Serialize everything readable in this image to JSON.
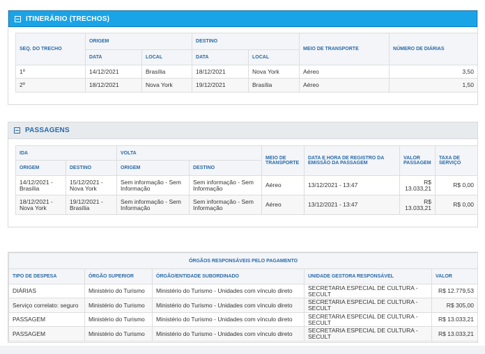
{
  "itinerario": {
    "title": "ITINERÁRIO (TRECHOS)",
    "headers": {
      "seq": "SEQ. DO TRECHO",
      "origem": "ORIGEM",
      "destino": "DESTINO",
      "data": "DATA",
      "local": "LOCAL",
      "meio": "MEIO DE TRANSPORTE",
      "diarias": "NÚMERO DE DIÁRIAS"
    },
    "rows": [
      {
        "seq": "1º",
        "origem_data": "14/12/2021",
        "origem_local": "Brasília",
        "destino_data": "18/12/2021",
        "destino_local": "Nova York",
        "meio": "Aéreo",
        "diarias": "3,50"
      },
      {
        "seq": "2º",
        "origem_data": "18/12/2021",
        "origem_local": "Nova York",
        "destino_data": "19/12/2021",
        "destino_local": "Brasília",
        "meio": "Aéreo",
        "diarias": "1,50"
      }
    ]
  },
  "passagens": {
    "title": "PASSAGENS",
    "headers": {
      "ida": "IDA",
      "volta": "VOLTA",
      "origem": "ORIGEM",
      "destino": "DESTINO",
      "meio": "MEIO DE TRANSPORTE",
      "data_hora": "DATA E HORA DE REGISTRO DA EMISSÃO DA PASSAGEM",
      "valor": "VALOR PASSAGEM",
      "taxa": "TAXA DE SERVIÇO"
    },
    "rows": [
      {
        "ida_origem": "14/12/2021 - Brasília",
        "ida_destino": "15/12/2021 - Nova York",
        "volta_origem": "Sem informação - Sem Informação",
        "volta_destino": "Sem informação - Sem Informação",
        "meio": "Aéreo",
        "data_hora": "13/12/2021 - 13:47",
        "valor": "R$ 13.033,21",
        "taxa": "R$ 0,00"
      },
      {
        "ida_origem": "18/12/2021 - Nova York",
        "ida_destino": "19/12/2021 - Brasília",
        "volta_origem": "Sem informação - Sem Informação",
        "volta_destino": "Sem informação - Sem Informação",
        "meio": "Aéreo",
        "data_hora": "13/12/2021 - 13:47",
        "valor": "R$ 13.033,21",
        "taxa": "R$ 0,00"
      }
    ]
  },
  "orgaos": {
    "title": "ÓRGÃOS RESPONSÁVEIS PELO PAGAMENTO",
    "headers": {
      "tipo": "TIPO DE DESPESA",
      "superior": "ÓRGÃO SUPERIOR",
      "subordinado": "ÓRGÃO/ENTIDADE SUBORDINADO",
      "ug": "UNIDADE GESTORA RESPONSÁVEL",
      "valor": "VALOR"
    },
    "rows": [
      {
        "tipo": "DIÁRIAS",
        "superior": "Ministério do Turismo",
        "subordinado": "Ministério do Turismo - Unidades com vínculo direto",
        "ug": "SECRETARIA ESPECIAL DE CULTURA - SECULT",
        "valor": "R$ 12.779,53"
      },
      {
        "tipo": "Serviço correlato: seguro",
        "superior": "Ministério do Turismo",
        "subordinado": "Ministério do Turismo - Unidades com vínculo direto",
        "ug": "SECRETARIA ESPECIAL DE CULTURA - SECULT",
        "valor": "R$ 305,00"
      },
      {
        "tipo": "PASSAGEM",
        "superior": "Ministério do Turismo",
        "subordinado": "Ministério do Turismo - Unidades com vínculo direto",
        "ug": "SECRETARIA ESPECIAL DE CULTURA - SECULT",
        "valor": "R$ 13.033,21"
      },
      {
        "tipo": "PASSAGEM",
        "superior": "Ministério do Turismo",
        "subordinado": "Ministério do Turismo - Unidades com vínculo direto",
        "ug": "SECRETARIA ESPECIAL DE CULTURA - SECULT",
        "valor": "R$ 13.033,21"
      }
    ]
  }
}
